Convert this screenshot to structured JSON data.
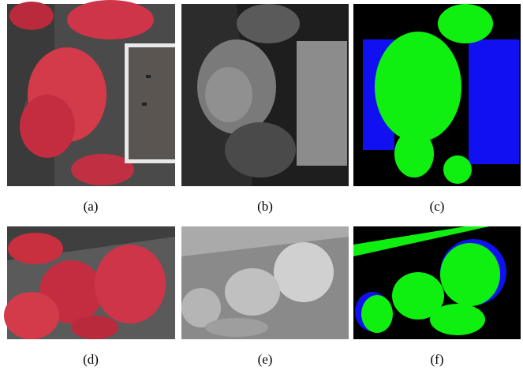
{
  "figure": {
    "captions": [
      "(a)",
      "(b)",
      "(c)",
      "(d)",
      "(e)",
      "(f)"
    ]
  }
}
